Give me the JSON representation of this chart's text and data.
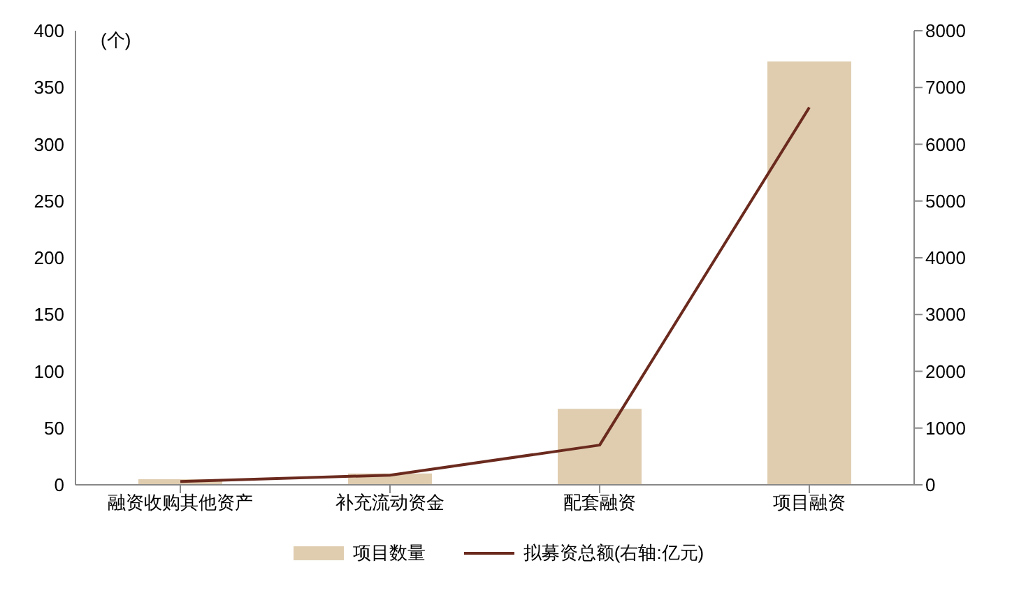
{
  "chart_data": {
    "type": "bar",
    "ylabel": "(个)",
    "categories": [
      "融资收购其他资产",
      "补充流动资金",
      "配套融资",
      "项目融资"
    ],
    "series": [
      {
        "name": "项目数量",
        "color": "#e0cdb0",
        "values": [
          5,
          10,
          67,
          373
        ]
      },
      {
        "name": "拟募资总额(右轴:亿元)",
        "type": "line",
        "axis": "y2",
        "color": "#6b2a1e",
        "values": [
          60,
          170,
          700,
          6650
        ]
      }
    ],
    "ylim": [
      0,
      400
    ],
    "yticks": [
      0,
      50,
      100,
      150,
      200,
      250,
      300,
      350,
      400
    ],
    "y2lim": [
      0,
      8000
    ],
    "y2ticks": [
      0,
      1000,
      2000,
      3000,
      4000,
      5000,
      6000,
      7000,
      8000
    ],
    "grid": false,
    "legend": "bottom",
    "marker": "none"
  }
}
